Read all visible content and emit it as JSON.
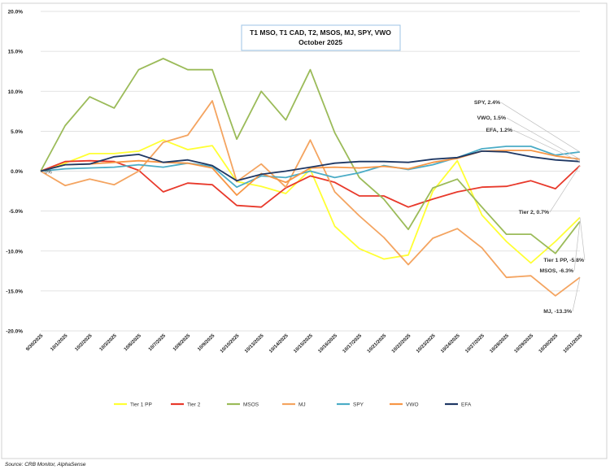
{
  "chart_data": {
    "type": "line",
    "title": "T1 MSO, T1 CAD, T2, MSOS, MJ, SPY, VWO",
    "subtitle": "October  2025",
    "xlabel": "",
    "ylabel": "",
    "ylim": [
      -20,
      20
    ],
    "yticks": [
      -20,
      -15,
      -10,
      -5,
      0,
      5,
      10,
      15,
      20
    ],
    "ytick_labels": [
      "-20.0%",
      "-15.0%",
      "-10.0%",
      "-5.0%",
      "0.0%",
      "5.0%",
      "10.0%",
      "15.0%",
      "20.0%"
    ],
    "grid": true,
    "legend_position": "bottom",
    "categories": [
      "9/30/2025",
      "10/1/2025",
      "10/2/2025",
      "10/3/2025",
      "10/6/2025",
      "10/7/2025",
      "10/8/2025",
      "10/9/2025",
      "10/10/2025",
      "10/13/2025",
      "10/14/2025",
      "10/15/2025",
      "10/16/2025",
      "10/17/2025",
      "10/21/2025",
      "10/22/2025",
      "10/23/2025",
      "10/24/2025",
      "10/27/2025",
      "10/28/2025",
      "10/29/2025",
      "10/30/2025",
      "10/31/2025"
    ],
    "series": [
      {
        "name": "Tier 1 PP",
        "color": "#ffff33",
        "values": [
          0,
          1.0,
          2.2,
          2.2,
          2.5,
          3.9,
          2.7,
          3.2,
          -1.3,
          -1.9,
          -2.8,
          0.2,
          -6.9,
          -9.7,
          -11.0,
          -10.5,
          -2.5,
          1.3,
          -5.5,
          -8.8,
          -11.5,
          -8.8,
          -5.8
        ]
      },
      {
        "name": "Tier 2",
        "color": "#e8392b",
        "values": [
          0,
          1.2,
          1.3,
          1.2,
          0.1,
          -2.6,
          -1.5,
          -1.7,
          -4.3,
          -4.5,
          -2.1,
          -0.6,
          -1.4,
          -3.1,
          -3.1,
          -4.5,
          -3.5,
          -2.6,
          -2.0,
          -1.9,
          -1.2,
          -2.2,
          0.7
        ]
      },
      {
        "name": "MSOS",
        "color": "#9bbb59",
        "values": [
          0,
          5.7,
          9.3,
          7.9,
          12.7,
          14.1,
          12.7,
          12.7,
          4.0,
          10.0,
          6.4,
          12.7,
          4.8,
          -0.8,
          -3.5,
          -7.3,
          -2.1,
          -1.0,
          -4.5,
          -7.9,
          -7.9,
          -10.3,
          -6.3
        ]
      },
      {
        "name": "MJ",
        "color": "#f4a460",
        "values": [
          0,
          -1.8,
          -1.0,
          -1.7,
          0.0,
          3.6,
          4.5,
          8.8,
          -1.3,
          0.9,
          -2.0,
          3.9,
          -2.6,
          -5.6,
          -8.3,
          -11.7,
          -8.4,
          -7.2,
          -9.6,
          -13.3,
          -13.1,
          -15.6,
          -13.3
        ]
      },
      {
        "name": "SPY",
        "color": "#4bacc6",
        "values": [
          0,
          0.3,
          0.4,
          0.5,
          0.8,
          0.5,
          1.0,
          0.6,
          -2.0,
          -0.6,
          -0.8,
          0.0,
          -0.8,
          -0.2,
          0.7,
          0.2,
          0.8,
          1.7,
          2.8,
          3.1,
          3.1,
          2.0,
          2.4
        ]
      },
      {
        "name": "VWO",
        "color": "#f79646",
        "values": [
          0,
          0.8,
          0.9,
          1.1,
          1.3,
          1.1,
          1.0,
          0.4,
          -3.0,
          -0.3,
          -1.4,
          0.4,
          0.5,
          0.4,
          0.6,
          0.3,
          1.1,
          1.6,
          2.5,
          2.6,
          2.6,
          1.9,
          1.5
        ]
      },
      {
        "name": "EFA",
        "color": "#1f3864",
        "values": [
          0,
          0.8,
          0.9,
          1.8,
          2.1,
          1.1,
          1.4,
          0.7,
          -1.2,
          -0.4,
          0.0,
          0.5,
          1.0,
          1.2,
          1.2,
          1.1,
          1.5,
          1.7,
          2.5,
          2.4,
          1.8,
          1.4,
          1.2
        ]
      }
    ],
    "annotations": [
      {
        "text": "SPY, 2.4%",
        "series": "SPY"
      },
      {
        "text": "VWO, 1.5%",
        "series": "VWO"
      },
      {
        "text": "EFA, 1.2%",
        "series": "EFA"
      },
      {
        "text": "Tier 2, 0.7%",
        "series": "Tier 2"
      },
      {
        "text": "Tier 1 PP, -5.8%",
        "series": "Tier 1 PP"
      },
      {
        "text": "MSOS, -6.3%",
        "series": "MSOS"
      },
      {
        "text": "MJ, -13.3%",
        "series": "MJ"
      }
    ],
    "zero_label": "0%"
  },
  "source_text": "Source: CRB Monitor, AlphaSense"
}
